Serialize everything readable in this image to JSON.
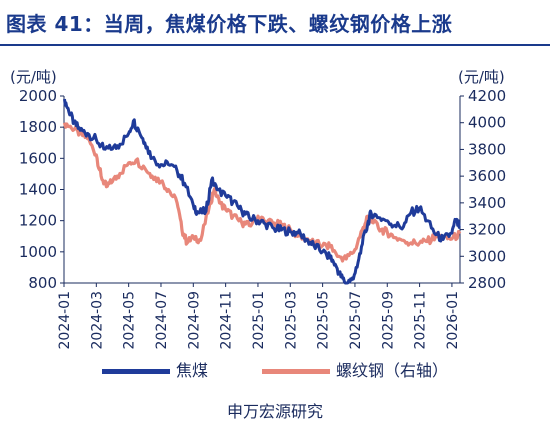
{
  "title": "图表 41：当周，焦煤价格下跌、螺纹钢价格上涨",
  "source": "申万宏源研究",
  "colors": {
    "coke": "#1f3b9a",
    "rebar": "#e8877a",
    "axis": "#1a2b5e",
    "title": "#1a3a8c"
  },
  "chart_data": {
    "type": "line",
    "left_axis": {
      "unit": "(元/吨)",
      "min": 800,
      "max": 2000,
      "ticks": [
        800,
        1000,
        1200,
        1400,
        1600,
        1800,
        2000
      ]
    },
    "right_axis": {
      "unit": "(元/吨)",
      "min": 2800,
      "max": 4200,
      "ticks": [
        2800,
        3000,
        3200,
        3400,
        3600,
        3800,
        4000,
        4200
      ]
    },
    "x_ticks": [
      "2024-01",
      "2024-03",
      "2024-05",
      "2024-07",
      "2024-09",
      "2024-11",
      "2025-01",
      "2025-03",
      "2025-05",
      "2025-07",
      "2025-09",
      "2025-11",
      "2026-01"
    ],
    "x_range": [
      "2024-01",
      "2026-01.5"
    ],
    "series": [
      {
        "name": "焦煤",
        "axis": "left",
        "points": [
          [
            "2024-01-02",
            1980
          ],
          [
            "2024-01-10",
            1900
          ],
          [
            "2024-01-20",
            1830
          ],
          [
            "2024-02-01",
            1780
          ],
          [
            "2024-02-15",
            1760
          ],
          [
            "2024-03-01",
            1720
          ],
          [
            "2024-03-15",
            1660
          ],
          [
            "2024-04-01",
            1660
          ],
          [
            "2024-04-15",
            1690
          ],
          [
            "2024-05-01",
            1760
          ],
          [
            "2024-05-10",
            1840
          ],
          [
            "2024-05-20",
            1780
          ],
          [
            "2024-06-01",
            1700
          ],
          [
            "2024-06-15",
            1600
          ],
          [
            "2024-07-01",
            1560
          ],
          [
            "2024-07-15",
            1560
          ],
          [
            "2024-08-01",
            1520
          ],
          [
            "2024-08-15",
            1440
          ],
          [
            "2024-09-01",
            1300
          ],
          [
            "2024-09-10",
            1250
          ],
          [
            "2024-09-25",
            1260
          ],
          [
            "2024-10-05",
            1460
          ],
          [
            "2024-10-15",
            1400
          ],
          [
            "2024-11-01",
            1360
          ],
          [
            "2024-11-15",
            1320
          ],
          [
            "2024-12-01",
            1260
          ],
          [
            "2024-12-15",
            1220
          ],
          [
            "2025-01-01",
            1200
          ],
          [
            "2025-01-15",
            1180
          ],
          [
            "2025-02-01",
            1150
          ],
          [
            "2025-02-15",
            1140
          ],
          [
            "2025-03-01",
            1130
          ],
          [
            "2025-03-15",
            1120
          ],
          [
            "2025-04-01",
            1080
          ],
          [
            "2025-04-15",
            1040
          ],
          [
            "2025-05-01",
            1000
          ],
          [
            "2025-05-15",
            960
          ],
          [
            "2025-05-25",
            920
          ],
          [
            "2025-06-05",
            840
          ],
          [
            "2025-06-15",
            800
          ],
          [
            "2025-06-25",
            820
          ],
          [
            "2025-07-05",
            900
          ],
          [
            "2025-07-15",
            1050
          ],
          [
            "2025-07-25",
            1180
          ],
          [
            "2025-08-01",
            1250
          ],
          [
            "2025-08-15",
            1220
          ],
          [
            "2025-09-01",
            1200
          ],
          [
            "2025-09-15",
            1170
          ],
          [
            "2025-10-01",
            1160
          ],
          [
            "2025-10-15",
            1250
          ],
          [
            "2025-11-01",
            1280
          ],
          [
            "2025-11-15",
            1200
          ],
          [
            "2025-12-01",
            1110
          ],
          [
            "2025-12-15",
            1080
          ],
          [
            "2026-01-01",
            1120
          ],
          [
            "2026-01-08",
            1200
          ],
          [
            "2026-01-16",
            1160
          ]
        ]
      },
      {
        "name": "螺纹钢（右轴）",
        "axis": "right",
        "points": [
          [
            "2024-01-02",
            4000
          ],
          [
            "2024-01-15",
            3960
          ],
          [
            "2024-02-01",
            3920
          ],
          [
            "2024-02-15",
            3880
          ],
          [
            "2024-03-01",
            3760
          ],
          [
            "2024-03-10",
            3600
          ],
          [
            "2024-03-20",
            3520
          ],
          [
            "2024-04-01",
            3560
          ],
          [
            "2024-04-15",
            3620
          ],
          [
            "2024-05-01",
            3700
          ],
          [
            "2024-05-15",
            3720
          ],
          [
            "2024-06-01",
            3660
          ],
          [
            "2024-06-15",
            3600
          ],
          [
            "2024-07-01",
            3560
          ],
          [
            "2024-07-15",
            3500
          ],
          [
            "2024-08-01",
            3400
          ],
          [
            "2024-08-10",
            3200
          ],
          [
            "2024-08-20",
            3100
          ],
          [
            "2024-09-01",
            3150
          ],
          [
            "2024-09-15",
            3120
          ],
          [
            "2024-10-01",
            3380
          ],
          [
            "2024-10-10",
            3500
          ],
          [
            "2024-10-20",
            3400
          ],
          [
            "2024-11-01",
            3350
          ],
          [
            "2024-11-15",
            3300
          ],
          [
            "2024-12-01",
            3250
          ],
          [
            "2024-12-15",
            3230
          ],
          [
            "2025-01-01",
            3300
          ],
          [
            "2025-01-15",
            3260
          ],
          [
            "2025-02-01",
            3250
          ],
          [
            "2025-02-15",
            3230
          ],
          [
            "2025-03-01",
            3200
          ],
          [
            "2025-03-15",
            3150
          ],
          [
            "2025-04-01",
            3130
          ],
          [
            "2025-04-15",
            3100
          ],
          [
            "2025-05-01",
            3080
          ],
          [
            "2025-05-15",
            3070
          ],
          [
            "2025-06-01",
            3000
          ],
          [
            "2025-06-15",
            2980
          ],
          [
            "2025-07-01",
            3050
          ],
          [
            "2025-07-15",
            3200
          ],
          [
            "2025-07-25",
            3300
          ],
          [
            "2025-08-05",
            3250
          ],
          [
            "2025-08-20",
            3200
          ],
          [
            "2025-09-01",
            3180
          ],
          [
            "2025-09-15",
            3140
          ],
          [
            "2025-10-01",
            3120
          ],
          [
            "2025-10-15",
            3100
          ],
          [
            "2025-11-01",
            3100
          ],
          [
            "2025-11-15",
            3110
          ],
          [
            "2025-12-01",
            3150
          ],
          [
            "2025-12-15",
            3140
          ],
          [
            "2026-01-01",
            3130
          ],
          [
            "2026-01-16",
            3170
          ]
        ]
      }
    ],
    "legend": [
      "焦煤",
      "螺纹钢（右轴）"
    ],
    "legend_position": "bottom",
    "grid": false
  }
}
